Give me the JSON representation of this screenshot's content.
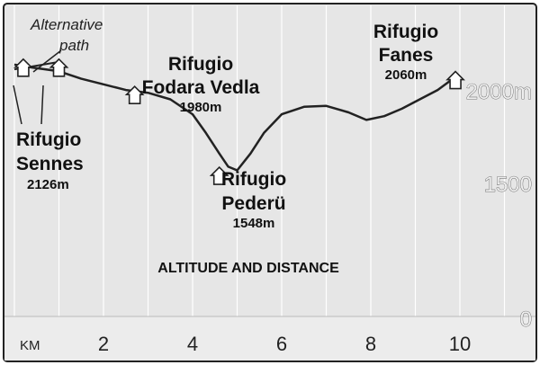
{
  "chart_data": {
    "type": "line",
    "title": "ALTITUDE AND DISTANCE",
    "xlabel": "KM",
    "ylabel": "",
    "x_ticks": [
      2,
      4,
      6,
      8,
      10
    ],
    "y_ticks": [
      "0",
      "1500",
      "2000m"
    ],
    "y_tick_values": [
      0,
      1500,
      2000
    ],
    "y_break": {
      "below": 1500,
      "note": "vertical axis is broken between 0 and 1500"
    },
    "xlim": [
      -0.2,
      11.9
    ],
    "ylim_upper": [
      1400,
      2200
    ],
    "grid": "vertical lines at every 1 km",
    "series": [
      {
        "x": [
          0.0,
          0.4,
          1.0,
          1.5,
          2.0,
          2.5,
          3.0,
          3.5,
          4.0,
          4.3,
          4.6,
          4.8,
          5.0,
          5.3,
          5.6,
          6.0,
          6.5,
          7.0,
          7.5,
          7.9,
          8.3,
          8.7,
          9.1,
          9.5,
          9.9
        ],
        "y": [
          2126,
          2110,
          2090,
          2050,
          2020,
          1990,
          1975,
          1940,
          1860,
          1760,
          1650,
          1580,
          1560,
          1650,
          1760,
          1860,
          1900,
          1905,
          1870,
          1830,
          1850,
          1890,
          1940,
          1990,
          2060
        ]
      }
    ],
    "markers": [
      {
        "x": 0.2,
        "y": 2126
      },
      {
        "x": 1.0,
        "y": 2126
      },
      {
        "x": 2.7,
        "y": 1980
      },
      {
        "x": 4.6,
        "y": 1548
      },
      {
        "x": 9.9,
        "y": 2060
      }
    ],
    "alternative_path": {
      "label": "Alternative path",
      "x": [
        0.0,
        1.0
      ],
      "y": [
        2100,
        2140
      ]
    },
    "annotations": [
      {
        "name": "Rifugio Sennes",
        "elevation": "2126m"
      },
      {
        "name": "Rifugio Fodara Vedla",
        "elevation": "1980m"
      },
      {
        "name": "Rifugio Pederü",
        "elevation": "1548m"
      },
      {
        "name": "Rifugio Fanes",
        "elevation": "2060m"
      }
    ]
  },
  "labels": {
    "alt_line1": "Alternative",
    "alt_line2": "path",
    "sennes_1": "Rifugio",
    "sennes_2": "Sennes",
    "sennes_elev": "2126m",
    "fodara_1": "Rifugio",
    "fodara_2": "Fodara Vedla",
    "fodara_elev": "1980m",
    "pederu_1": "Rifugio",
    "pederu_2": "Pederü",
    "pederu_elev": "1548m",
    "fanes_1": "Rifugio",
    "fanes_2": "Fanes",
    "fanes_elev": "2060m"
  },
  "colors": {
    "background": "#ffffff",
    "plot_background": "#e6e6e6",
    "axis_strip": "#ececec",
    "line": "#222222",
    "grid": "#ffffff"
  }
}
